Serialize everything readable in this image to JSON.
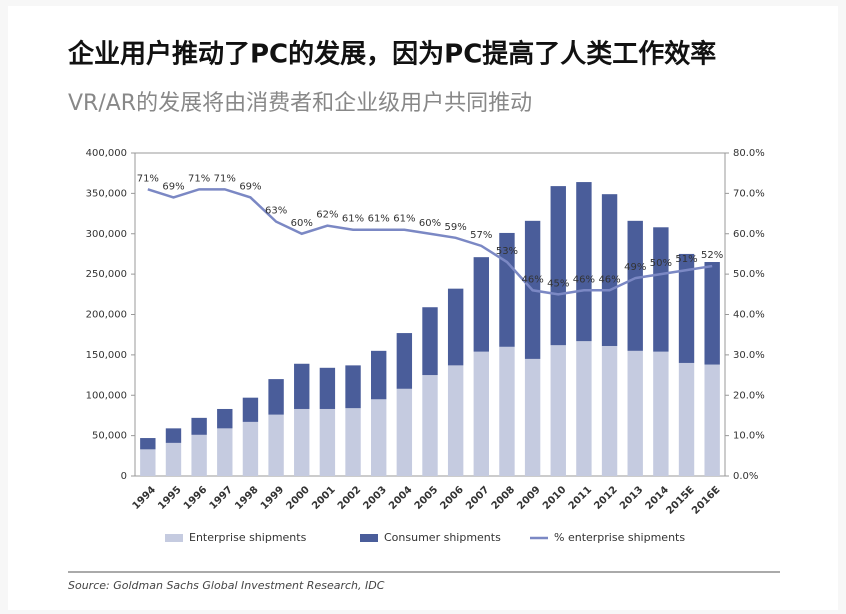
{
  "chart_data": {
    "type": "bar",
    "stacked": true,
    "title": "企业用户推动了PC的发展，因为PC提高了人类工作效率",
    "subtitle": "VR/AR的发展将由消费者和企业级用户共同推动",
    "source": "Source: Goldman Sachs Global Investment Research, IDC",
    "categories": [
      "1994",
      "1995",
      "1996",
      "1997",
      "1998",
      "1999",
      "2000",
      "2001",
      "2002",
      "2003",
      "2004",
      "2005",
      "2006",
      "2007",
      "2008",
      "2009",
      "2010",
      "2011",
      "2012",
      "2013",
      "2014",
      "2015E",
      "2016E"
    ],
    "series": [
      {
        "name": "Enterprise shipments",
        "color": "#c5cbe0",
        "values": [
          33000,
          41000,
          51000,
          59000,
          67000,
          76000,
          83000,
          83000,
          84000,
          95000,
          108000,
          125000,
          137000,
          154000,
          160000,
          145000,
          162000,
          167000,
          161000,
          155000,
          154000,
          140000,
          138000
        ]
      },
      {
        "name": "Consumer shipments",
        "color": "#4a5d9a",
        "values": [
          14000,
          18000,
          21000,
          24000,
          30000,
          44000,
          56000,
          51000,
          53000,
          60000,
          69000,
          84000,
          95000,
          117000,
          141000,
          171000,
          197000,
          197000,
          188000,
          161000,
          154000,
          135000,
          127000
        ]
      },
      {
        "name": "% enterprise shipments",
        "color": "#7b88c4",
        "type": "line",
        "axis": "y2",
        "values": [
          71,
          69,
          71,
          71,
          69,
          63,
          60,
          62,
          61,
          61,
          61,
          60,
          59,
          57,
          53,
          46,
          45,
          46,
          46,
          49,
          50,
          51,
          52
        ],
        "value_labels": [
          "71%",
          "69%",
          "71%",
          "71%",
          "69%",
          "63%",
          "60%",
          "62%",
          "61%",
          "61%",
          "61%",
          "60%",
          "59%",
          "57%",
          "53%",
          "46%",
          "45%",
          "46%",
          "46%",
          "49%",
          "50%",
          "51%",
          "52%"
        ]
      }
    ],
    "ylim": [
      0,
      400000
    ],
    "yticks": [
      0,
      {
        "value": 50000,
        "label": "50,000"
      },
      {
        "value": 100000,
        "label": "100,000"
      },
      {
        "value": 150000,
        "label": "150,000"
      },
      {
        "value": 200000,
        "label": "200,000"
      },
      {
        "value": 250000,
        "label": "250,000"
      },
      {
        "value": 300000,
        "label": "300,000"
      },
      {
        "value": 350000,
        "label": "350,000"
      },
      {
        "value": 400000,
        "label": "400,000"
      }
    ],
    "y2lim": [
      0,
      80
    ],
    "y2ticks": [
      {
        "value": 0,
        "label": "0.0%"
      },
      {
        "value": 10,
        "label": "10.0%"
      },
      {
        "value": 20,
        "label": "20.0%"
      },
      {
        "value": 30,
        "label": "30.0%"
      },
      {
        "value": 40,
        "label": "40.0%"
      },
      {
        "value": 50,
        "label": "50.0%"
      },
      {
        "value": 60,
        "label": "60.0%"
      },
      {
        "value": 70,
        "label": "70.0%"
      },
      {
        "value": 80,
        "label": "80.0%"
      }
    ],
    "grid": false
  }
}
